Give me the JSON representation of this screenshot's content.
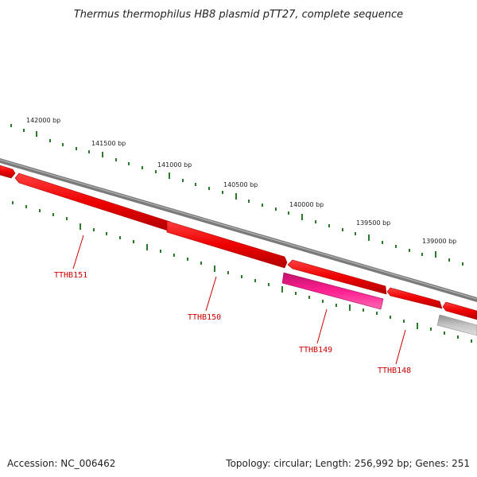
{
  "title": "Thermus thermophilus HB8 plasmid pTT27, complete sequence",
  "accession": "Accession: NC_006462",
  "summary": "Topology: circular; Length: 256,992 bp; Genes: 251",
  "colors": {
    "backbone": "#7a7a7a",
    "gene_forward": "#ee0000",
    "gene_highlight": "#ff2090",
    "gene_gray": "#b8b8b8",
    "tick": "#2a7a2a",
    "label": "#cc0000"
  },
  "scale_labels": [
    "142000 bp",
    "141500 bp",
    "141000 bp",
    "140500 bp",
    "140000 bp",
    "139500 bp",
    "139000 bp"
  ],
  "genes": [
    "TTHB151",
    "TTHB150",
    "TTHB149",
    "TTHB148"
  ]
}
